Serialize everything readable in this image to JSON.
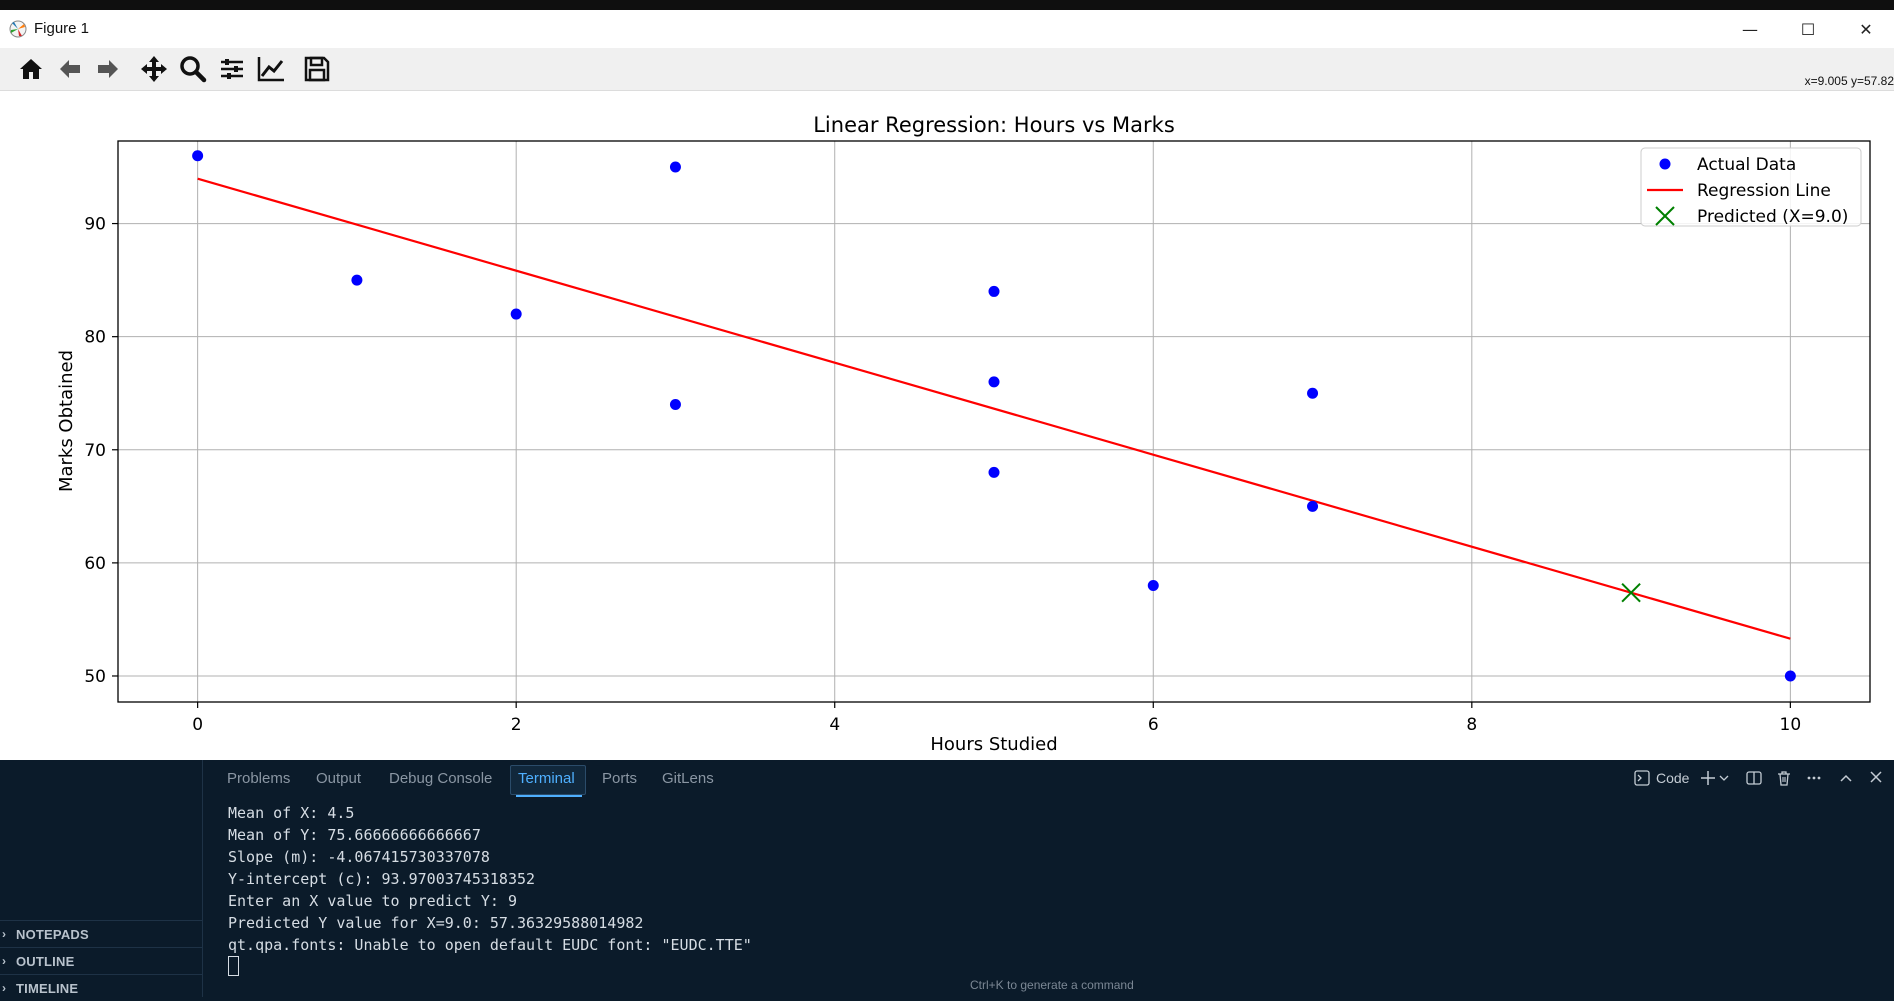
{
  "window": {
    "title": "Figure 1",
    "minimize_glyph": "—",
    "maximize_glyph": "☐",
    "close_glyph": "✕"
  },
  "toolbar": {
    "icons": [
      "home-icon",
      "back-arrow-icon",
      "forward-arrow-icon",
      "pan-move-icon",
      "zoom-magnifier-icon",
      "configure-subplots-icon",
      "edit-axis-icon",
      "save-figure-icon"
    ],
    "coords_readout": "x=9.005 y=57.82"
  },
  "chart_data": {
    "type": "scatter",
    "title": "Linear Regression: Hours vs Marks",
    "xlabel": "Hours Studied",
    "ylabel": "Marks Obtained",
    "xlim": [
      -0.5,
      10.5
    ],
    "ylim": [
      47.7,
      97.3
    ],
    "xticks": [
      0,
      2,
      4,
      6,
      8,
      10
    ],
    "yticks": [
      50,
      60,
      70,
      80,
      90
    ],
    "grid": true,
    "legend_position": "upper right",
    "series": [
      {
        "name": "Actual Data",
        "kind": "scatter",
        "color": "#0000ff",
        "points": [
          [
            0,
            96
          ],
          [
            1,
            85
          ],
          [
            2,
            82
          ],
          [
            3,
            95
          ],
          [
            3,
            74
          ],
          [
            5,
            84
          ],
          [
            5,
            76
          ],
          [
            5,
            68
          ],
          [
            6,
            58
          ],
          [
            7,
            75
          ],
          [
            7,
            65
          ],
          [
            10,
            50
          ]
        ]
      },
      {
        "name": "Regression Line",
        "kind": "line",
        "color": "#ff0000",
        "x": [
          0,
          10
        ],
        "y": [
          93.97003745318352,
          53.2958801498127
        ]
      },
      {
        "name": "Predicted (X=9.0)",
        "kind": "marker-x",
        "color": "#008000",
        "points": [
          [
            9.0,
            57.36329588014982
          ]
        ]
      }
    ]
  },
  "vscode": {
    "sidebar_sections": [
      "NOTEPADS",
      "OUTLINE",
      "TIMELINE"
    ],
    "panel_tabs": [
      "Problems",
      "Output",
      "Debug Console",
      "Terminal",
      "Ports",
      "GitLens"
    ],
    "active_tab": "Terminal",
    "terminal_profile_label": "Code",
    "terminal_lines": [
      "Mean of X: 4.5",
      "Mean of Y: 75.66666666666667",
      "Slope (m): -4.067415730337078",
      "Y-intercept (c): 93.97003745318352",
      "Enter an X value to predict Y: 9",
      "Predicted Y value for X=9.0: 57.36329588014982",
      "qt.qpa.fonts: Unable to open default EUDC font: \"EUDC.TTE\""
    ],
    "bottom_hint": "Ctrl+K to generate a command",
    "accent_color": "#4fb0ff"
  }
}
